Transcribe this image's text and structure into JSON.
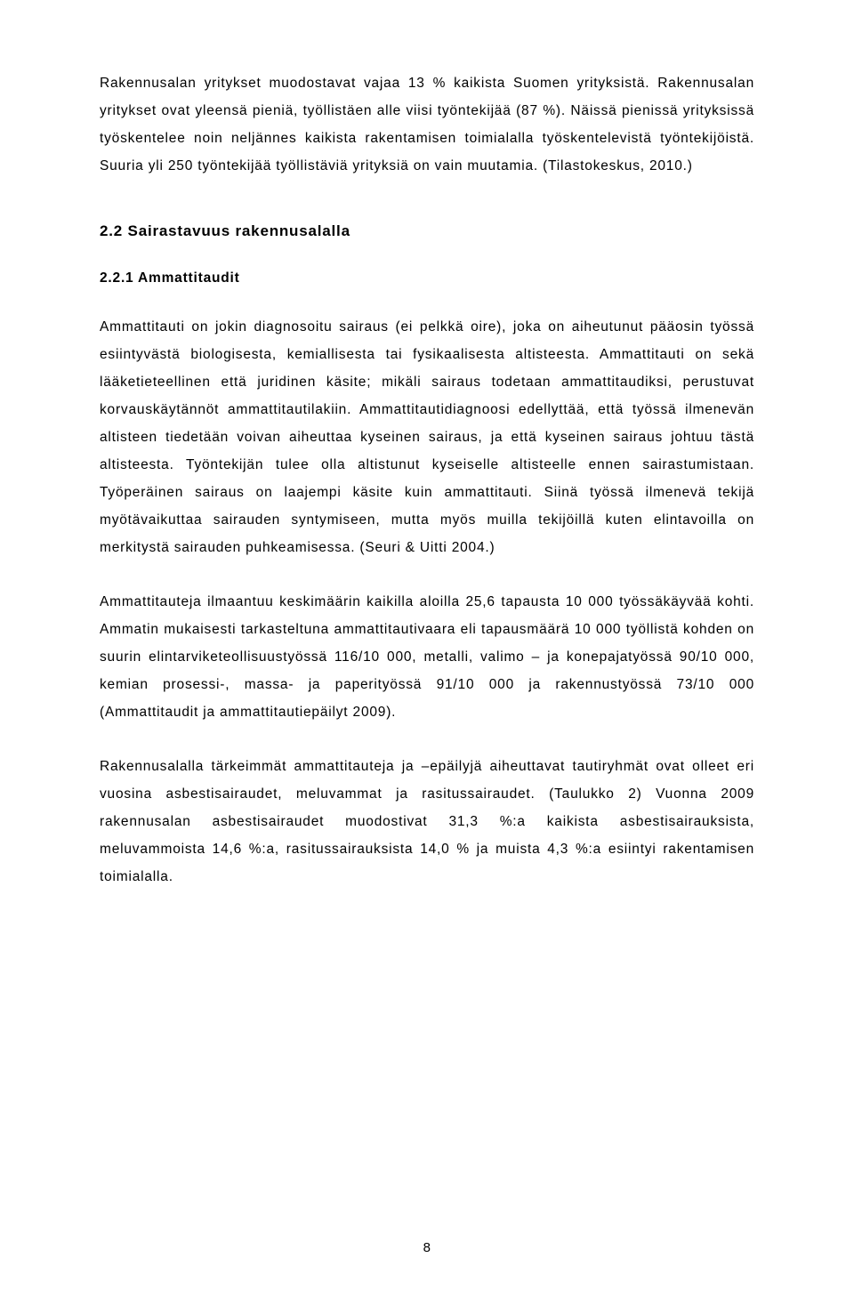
{
  "para_intro": "Rakennusalan yritykset muodostavat vajaa 13 % kaikista Suomen yrityksistä. Rakennusalan yritykset ovat yleensä pieniä, työllistäen alle viisi työntekijää (87 %). Näissä pienissä yrityksissä työskentelee noin neljännes kaikista rakentamisen toimialalla työskentelevistä työntekijöistä. Suuria yli 250 työntekijää työllistäviä yrityksiä on vain muutamia. (Tilastokeskus, 2010.)",
  "heading_2_2": "2.2 Sairastavuus rakennusalalla",
  "heading_2_2_1": "2.2.1 Ammattitaudit",
  "para1": "Ammattitauti on jokin diagnosoitu sairaus (ei pelkkä oire), joka on aiheutunut pääosin työssä esiintyvästä biologisesta, kemiallisesta tai fysikaalisesta altisteesta. Ammattitauti on sekä lääketieteellinen että juridinen käsite; mikäli sairaus todetaan ammattitaudiksi, perustuvat korvauskäytännöt ammattitautilakiin. Ammattitautidiagnoosi edellyttää, että työssä ilmenevän altisteen tiedetään voivan aiheuttaa kyseinen sairaus, ja että kyseinen sairaus johtuu tästä altisteesta. Työntekijän tulee olla altistunut kyseiselle altisteelle ennen sairastumistaan. Työperäinen sairaus on laajempi käsite kuin ammattitauti. Siinä työssä ilmenevä tekijä myötävaikuttaa sairauden syntymiseen, mutta myös muilla tekijöillä kuten elintavoilla on merkitystä sairauden puhkeamisessa. (Seuri & Uitti 2004.)",
  "para2": "Ammattitauteja ilmaantuu keskimäärin kaikilla aloilla 25,6 tapausta 10 000 työssäkäyvää kohti. Ammatin mukaisesti tarkasteltuna ammattitautivaara eli tapausmäärä 10 000 työllistä kohden on suurin elintarviketeollisuustyössä 116/10 000, metalli, valimo – ja konepajatyössä 90/10 000, kemian prosessi-, massa- ja paperityössä 91/10 000 ja rakennustyössä 73/10 000 (Ammattitaudit ja ammattitautiepäilyt 2009).",
  "para3": "Rakennusalalla tärkeimmät ammattitauteja ja –epäilyjä aiheuttavat tautiryhmät ovat olleet eri vuosina asbestisairaudet, meluvammat ja rasitussairaudet. (Taulukko 2) Vuonna 2009 rakennusalan asbestisairaudet muodostivat 31,3 %:a kaikista asbestisairauksista, meluvammoista 14,6 %:a, rasitussairauksista 14,0 % ja muista 4,3 %:a esiintyi rakentamisen toimialalla.",
  "page_number": "8"
}
